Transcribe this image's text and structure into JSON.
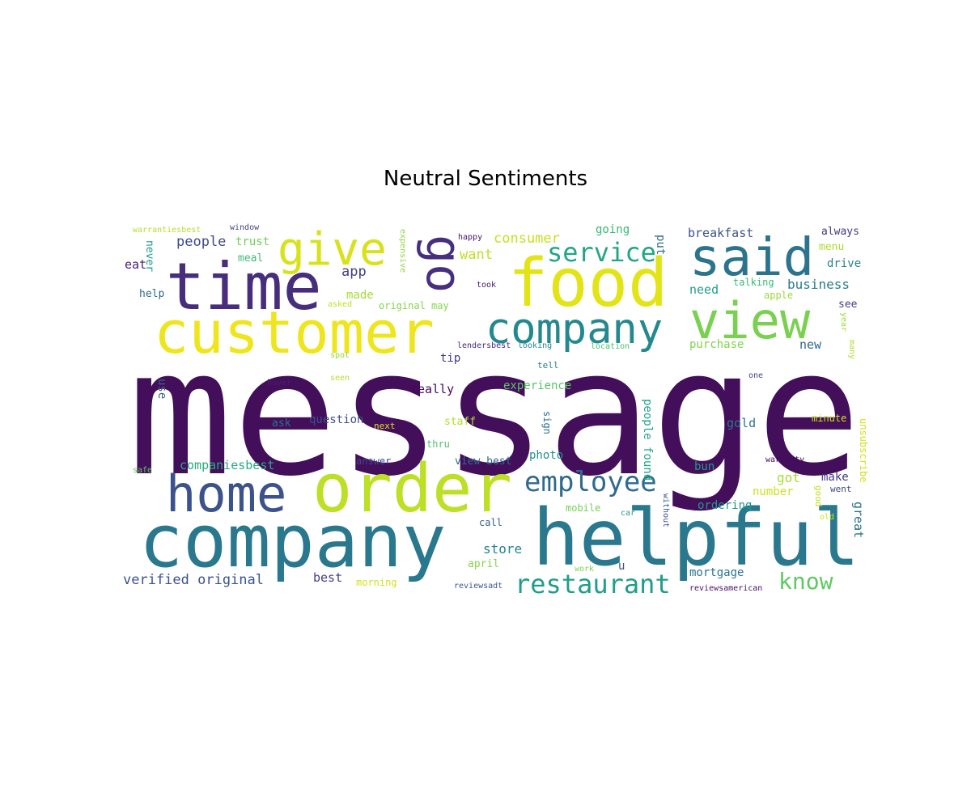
{
  "title": "Neutral Sentiments",
  "words": [
    {
      "text": "message",
      "color": "#440f5a"
    },
    {
      "text": "helpful",
      "color": "#2a788e"
    },
    {
      "text": "company",
      "color": "#2a788e"
    },
    {
      "text": "order",
      "color": "#bddf26"
    },
    {
      "text": "customer",
      "color": "#efe51c"
    },
    {
      "text": "time",
      "color": "#472d7b"
    },
    {
      "text": "food",
      "color": "#e2e418"
    },
    {
      "text": "said",
      "color": "#2c738e"
    },
    {
      "text": "view",
      "color": "#7ad151"
    },
    {
      "text": "home",
      "color": "#3b528b"
    },
    {
      "text": "company",
      "color": "#23898e"
    },
    {
      "text": "give",
      "color": "#d8e219"
    },
    {
      "text": "go",
      "color": "#46307e"
    },
    {
      "text": "employee",
      "color": "#2f6b8e"
    },
    {
      "text": "service",
      "color": "#21a685"
    },
    {
      "text": "restaurant",
      "color": "#1f9e89"
    },
    {
      "text": "know",
      "color": "#5ec962"
    },
    {
      "text": "consumer",
      "color": "#c8e020"
    },
    {
      "text": "people",
      "color": "#3e4a89"
    },
    {
      "text": "trust",
      "color": "#6ece58"
    },
    {
      "text": "want",
      "color": "#c2df23"
    },
    {
      "text": "app",
      "color": "#433e85"
    },
    {
      "text": "made",
      "color": "#a5db36"
    },
    {
      "text": "meal",
      "color": "#3dbc74"
    },
    {
      "text": "eat",
      "color": "#482173"
    },
    {
      "text": "never",
      "color": "#1f9a8a"
    },
    {
      "text": "help",
      "color": "#31688e"
    },
    {
      "text": "window",
      "color": "#414487"
    },
    {
      "text": "warrantiesbest",
      "color": "#b5de2b"
    },
    {
      "text": "expensive",
      "color": "#90d743"
    },
    {
      "text": "happy",
      "color": "#471365"
    },
    {
      "text": "took",
      "color": "#48186a"
    },
    {
      "text": "asked",
      "color": "#c0df25"
    },
    {
      "text": "original may",
      "color": "#86d549"
    },
    {
      "text": "going",
      "color": "#35b779"
    },
    {
      "text": "put",
      "color": "#2d708e"
    },
    {
      "text": "breakfast",
      "color": "#3a548c"
    },
    {
      "text": "always",
      "color": "#443a83"
    },
    {
      "text": "menu",
      "color": "#addc30"
    },
    {
      "text": "drive",
      "color": "#26828e"
    },
    {
      "text": "business",
      "color": "#287d8e"
    },
    {
      "text": "need",
      "color": "#1fa088"
    },
    {
      "text": "talking",
      "color": "#3aba76"
    },
    {
      "text": "apple",
      "color": "#9bd93c"
    },
    {
      "text": "see",
      "color": "#424086"
    },
    {
      "text": "year",
      "color": "#a2da37"
    },
    {
      "text": "purchase",
      "color": "#7fd34e"
    },
    {
      "text": "new",
      "color": "#31678e"
    },
    {
      "text": "many",
      "color": "#b0dd2f"
    },
    {
      "text": "lendersbest",
      "color": "#482979"
    },
    {
      "text": "looking",
      "color": "#25838e"
    },
    {
      "text": "location",
      "color": "#4ac16d"
    },
    {
      "text": "spot",
      "color": "#95d840"
    },
    {
      "text": "tip",
      "color": "#453581"
    },
    {
      "text": "tell",
      "color": "#277f8e"
    },
    {
      "text": "seen",
      "color": "#b8de29"
    },
    {
      "text": "buyer",
      "color": "#481c6e"
    },
    {
      "text": "one",
      "color": "#3f4788"
    },
    {
      "text": "use",
      "color": "#34618d"
    },
    {
      "text": "really",
      "color": "#46085c"
    },
    {
      "text": "experience",
      "color": "#56c667"
    },
    {
      "text": "question",
      "color": "#3c4f8a"
    },
    {
      "text": "ask",
      "color": "#2e6e8e"
    },
    {
      "text": "next",
      "color": "#d5e21a"
    },
    {
      "text": "staff",
      "color": "#b2dd2d"
    },
    {
      "text": "thru",
      "color": "#4fc46a"
    },
    {
      "text": "sign",
      "color": "#2b748e"
    },
    {
      "text": "people found",
      "color": "#21a585"
    },
    {
      "text": "gold",
      "color": "#2b758e"
    },
    {
      "text": "minute",
      "color": "#cae11f"
    },
    {
      "text": "unsubscribe",
      "color": "#d0e11c"
    },
    {
      "text": "companiesbest",
      "color": "#25ac82"
    },
    {
      "text": "safe",
      "color": "#5cc863"
    },
    {
      "text": "answer",
      "color": "#404688"
    },
    {
      "text": "view best",
      "color": "#30698e"
    },
    {
      "text": "photo",
      "color": "#20928c"
    },
    {
      "text": "got",
      "color": "#a8db34"
    },
    {
      "text": "make",
      "color": "#453882"
    },
    {
      "text": "warranty",
      "color": "#46085c"
    },
    {
      "text": "good",
      "color": "#c5e021"
    },
    {
      "text": "went",
      "color": "#3f4889"
    },
    {
      "text": "bun",
      "color": "#1e9b8a"
    },
    {
      "text": "number",
      "color": "#cde11d"
    },
    {
      "text": "without",
      "color": "#3a538b"
    },
    {
      "text": "ordering",
      "color": "#1f988b"
    },
    {
      "text": "great",
      "color": "#2d718e"
    },
    {
      "text": "old",
      "color": "#d2e21b"
    },
    {
      "text": "call",
      "color": "#34608d"
    },
    {
      "text": "mobile",
      "color": "#75d054"
    },
    {
      "text": "car",
      "color": "#1f9f88"
    },
    {
      "text": "store",
      "color": "#26818e"
    },
    {
      "text": "april",
      "color": "#86d549"
    },
    {
      "text": "u",
      "color": "#3e4c8a"
    },
    {
      "text": "work",
      "color": "#7cd250"
    },
    {
      "text": "mortgage",
      "color": "#2c728e"
    },
    {
      "text": "verified original",
      "color": "#3b528b"
    },
    {
      "text": "best",
      "color": "#433d84"
    },
    {
      "text": "morning",
      "color": "#d2e21b"
    },
    {
      "text": "reviewsadt",
      "color": "#38588c"
    },
    {
      "text": "reviewsamerican",
      "color": "#471063"
    }
  ]
}
